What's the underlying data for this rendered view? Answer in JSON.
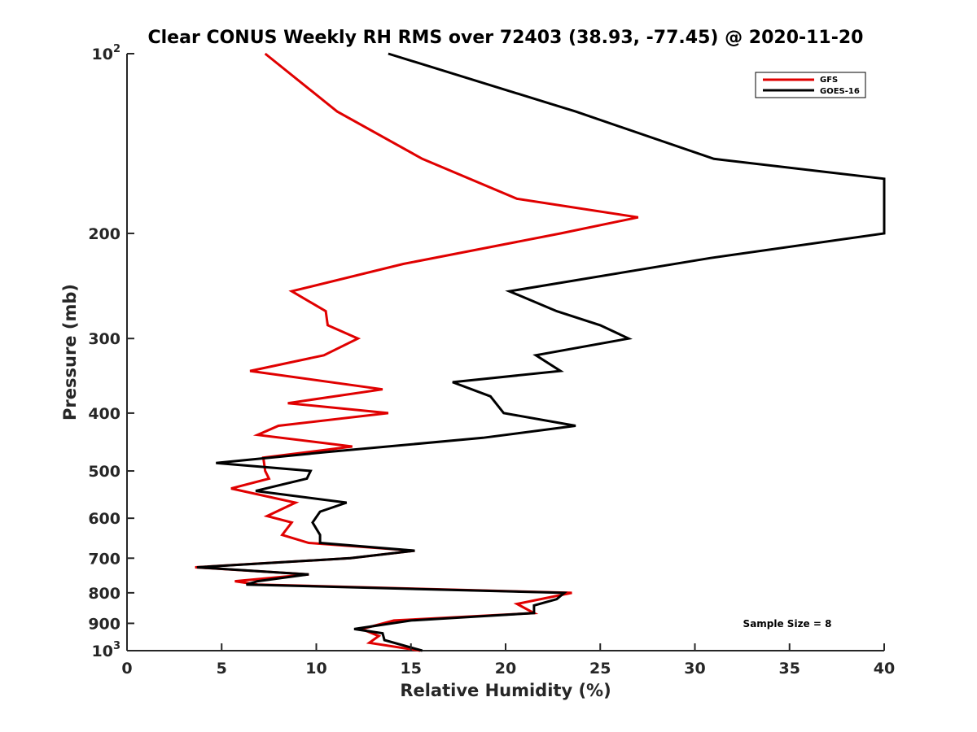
{
  "chart_data": {
    "type": "line",
    "title": "Clear CONUS Weekly RH RMS over 72403 (38.93, -77.45) @ 2020-11-20",
    "xlabel": "Relative Humidity (%)",
    "ylabel": "Pressure (mb)",
    "xlim": [
      0,
      40
    ],
    "ylim": [
      100,
      1000
    ],
    "y_scale": "log",
    "y_reversed": true,
    "grid": false,
    "legend_position": "top-right",
    "x_ticks": [
      0,
      5,
      10,
      15,
      20,
      25,
      30,
      35,
      40
    ],
    "x_tick_labels": [
      "0",
      "5",
      "10",
      "15",
      "20",
      "25",
      "30",
      "35",
      "40"
    ],
    "y_ticks": [
      100,
      200,
      300,
      400,
      500,
      600,
      700,
      800,
      900,
      1000
    ],
    "y_tick_labels": [
      {
        "base": "10",
        "exp": "2"
      },
      {
        "base": "200",
        "exp": ""
      },
      {
        "base": "300",
        "exp": ""
      },
      {
        "base": "400",
        "exp": ""
      },
      {
        "base": "500",
        "exp": ""
      },
      {
        "base": "600",
        "exp": ""
      },
      {
        "base": "700",
        "exp": ""
      },
      {
        "base": "800",
        "exp": ""
      },
      {
        "base": "900",
        "exp": ""
      },
      {
        "base": "10",
        "exp": "3"
      }
    ],
    "annotation": "Sample Size = 8",
    "series": [
      {
        "name": "GFS",
        "color": "#e00000",
        "points": [
          [
            7.3,
            100
          ],
          [
            11.1,
            125
          ],
          [
            15.6,
            150
          ],
          [
            20.6,
            175
          ],
          [
            27.0,
            188
          ],
          [
            22.9,
            200
          ],
          [
            14.6,
            225
          ],
          [
            8.7,
            250
          ],
          [
            10.5,
            270
          ],
          [
            10.6,
            285
          ],
          [
            12.2,
            300
          ],
          [
            10.4,
            320
          ],
          [
            6.5,
            340
          ],
          [
            13.5,
            365
          ],
          [
            8.5,
            385
          ],
          [
            13.8,
            400
          ],
          [
            8.0,
            420
          ],
          [
            6.9,
            435
          ],
          [
            11.9,
            455
          ],
          [
            7.2,
            475
          ],
          [
            7.3,
            500
          ],
          [
            7.5,
            515
          ],
          [
            5.5,
            535
          ],
          [
            8.9,
            565
          ],
          [
            7.4,
            595
          ],
          [
            8.7,
            610
          ],
          [
            8.2,
            640
          ],
          [
            9.6,
            660
          ],
          [
            15.2,
            680
          ],
          [
            11.8,
            700
          ],
          [
            3.6,
            725
          ],
          [
            9.6,
            745
          ],
          [
            5.7,
            765
          ],
          [
            6.9,
            775
          ],
          [
            23.5,
            800
          ],
          [
            20.6,
            835
          ],
          [
            21.5,
            865
          ],
          [
            14.1,
            890
          ],
          [
            12.4,
            920
          ],
          [
            13.3,
            945
          ],
          [
            12.8,
            970
          ],
          [
            15.5,
            1000
          ]
        ]
      },
      {
        "name": "GOES-16",
        "color": "#000000",
        "points": [
          [
            13.8,
            100
          ],
          [
            23.7,
            125
          ],
          [
            31.0,
            150
          ],
          [
            40.0,
            162
          ],
          [
            40.0,
            200
          ],
          [
            30.8,
            220
          ],
          [
            20.2,
            250
          ],
          [
            22.7,
            270
          ],
          [
            25.0,
            285
          ],
          [
            26.5,
            300
          ],
          [
            21.6,
            320
          ],
          [
            22.9,
            340
          ],
          [
            17.2,
            355
          ],
          [
            19.2,
            375
          ],
          [
            19.9,
            400
          ],
          [
            23.7,
            420
          ],
          [
            18.8,
            440
          ],
          [
            10.5,
            465
          ],
          [
            4.7,
            485
          ],
          [
            9.7,
            500
          ],
          [
            9.5,
            515
          ],
          [
            6.8,
            540
          ],
          [
            11.6,
            565
          ],
          [
            10.2,
            585
          ],
          [
            9.8,
            610
          ],
          [
            10.2,
            640
          ],
          [
            10.2,
            660
          ],
          [
            15.2,
            680
          ],
          [
            11.8,
            700
          ],
          [
            3.7,
            725
          ],
          [
            9.6,
            745
          ],
          [
            6.9,
            765
          ],
          [
            6.3,
            775
          ],
          [
            23.1,
            800
          ],
          [
            22.7,
            820
          ],
          [
            21.5,
            840
          ],
          [
            21.5,
            865
          ],
          [
            15.0,
            890
          ],
          [
            12.0,
            920
          ],
          [
            13.5,
            935
          ],
          [
            13.6,
            960
          ],
          [
            15.6,
            1000
          ]
        ]
      }
    ]
  }
}
